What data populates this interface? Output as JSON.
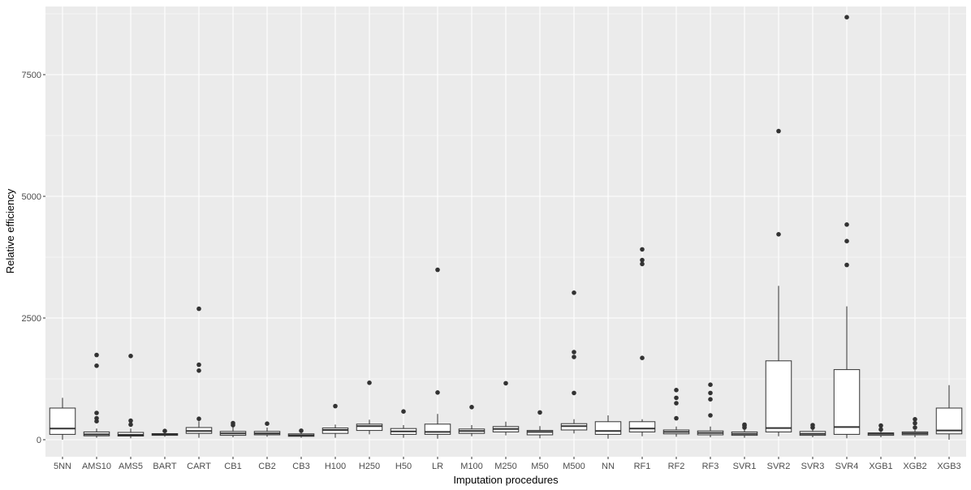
{
  "chart_data": {
    "type": "box",
    "title": "",
    "xlabel": "Imputation procedures",
    "ylabel": "Relative efficiency",
    "ylim": [
      -350,
      8900
    ],
    "yticks": [
      0,
      2500,
      5000,
      7500
    ],
    "ytick_labels": [
      "0",
      "2500",
      "5000",
      "7500"
    ],
    "grid": true,
    "legend": "none",
    "colors": {
      "panel": "#ebebeb",
      "grid": "#ffffff",
      "box_fill": "#ffffff",
      "box_line": "#333333",
      "outlier": "#333333"
    },
    "categories": [
      "5NN",
      "AMS10",
      "AMS5",
      "BART",
      "CART",
      "CB1",
      "CB2",
      "CB3",
      "H100",
      "H250",
      "H50",
      "LR",
      "M100",
      "M250",
      "M50",
      "M500",
      "NN",
      "RF1",
      "RF2",
      "RF3",
      "SVR1",
      "SVR2",
      "SVR3",
      "SVR4",
      "XGB1",
      "XGB2",
      "XGB3"
    ],
    "boxes": [
      {
        "category": "5NN",
        "lower": 0,
        "q1": 110,
        "median": 230,
        "q3": 650,
        "upper": 860,
        "outliers": []
      },
      {
        "category": "AMS10",
        "lower": 40,
        "q1": 80,
        "median": 110,
        "q3": 160,
        "upper": 230,
        "outliers": [
          380,
          440,
          550,
          1520,
          1740
        ]
      },
      {
        "category": "AMS5",
        "lower": 30,
        "q1": 75,
        "median": 100,
        "q3": 150,
        "upper": 230,
        "outliers": [
          310,
          390,
          1720
        ]
      },
      {
        "category": "BART",
        "lower": 60,
        "q1": 90,
        "median": 105,
        "q3": 125,
        "upper": 150,
        "outliers": [
          180
        ]
      },
      {
        "category": "CART",
        "lower": 40,
        "q1": 130,
        "median": 180,
        "q3": 250,
        "upper": 380,
        "outliers": [
          430,
          1420,
          1540,
          2690
        ]
      },
      {
        "category": "CB1",
        "lower": 50,
        "q1": 90,
        "median": 130,
        "q3": 170,
        "upper": 260,
        "outliers": [
          300,
          340
        ]
      },
      {
        "category": "CB2",
        "lower": 60,
        "q1": 100,
        "median": 130,
        "q3": 170,
        "upper": 250,
        "outliers": [
          330
        ]
      },
      {
        "category": "CB3",
        "lower": 40,
        "q1": 70,
        "median": 90,
        "q3": 120,
        "upper": 160,
        "outliers": [
          185
        ]
      },
      {
        "category": "H100",
        "lower": 40,
        "q1": 130,
        "median": 200,
        "q3": 240,
        "upper": 310,
        "outliers": [
          690
        ]
      },
      {
        "category": "H250",
        "lower": 110,
        "q1": 190,
        "median": 280,
        "q3": 320,
        "upper": 410,
        "outliers": [
          1170
        ]
      },
      {
        "category": "H50",
        "lower": 40,
        "q1": 110,
        "median": 170,
        "q3": 230,
        "upper": 300,
        "outliers": [
          580
        ]
      },
      {
        "category": "LR",
        "lower": 20,
        "q1": 110,
        "median": 160,
        "q3": 320,
        "upper": 530,
        "outliers": [
          970,
          3490
        ]
      },
      {
        "category": "M100",
        "lower": 70,
        "q1": 130,
        "median": 180,
        "q3": 220,
        "upper": 300,
        "outliers": [
          670
        ]
      },
      {
        "category": "M250",
        "lower": 90,
        "q1": 160,
        "median": 220,
        "q3": 270,
        "upper": 370,
        "outliers": [
          1160
        ]
      },
      {
        "category": "M50",
        "lower": 30,
        "q1": 100,
        "median": 160,
        "q3": 190,
        "upper": 280,
        "outliers": [
          560
        ]
      },
      {
        "category": "M500",
        "lower": 130,
        "q1": 200,
        "median": 280,
        "q3": 330,
        "upper": 420,
        "outliers": [
          960,
          1700,
          1800,
          3020
        ]
      },
      {
        "category": "NN",
        "lower": 20,
        "q1": 110,
        "median": 180,
        "q3": 370,
        "upper": 500,
        "outliers": []
      },
      {
        "category": "RF1",
        "lower": 70,
        "q1": 160,
        "median": 230,
        "q3": 370,
        "upper": 420,
        "outliers": [
          1680,
          3610,
          3690,
          3910
        ]
      },
      {
        "category": "RF2",
        "lower": 60,
        "q1": 120,
        "median": 160,
        "q3": 200,
        "upper": 270,
        "outliers": [
          440,
          750,
          860,
          1020
        ]
      },
      {
        "category": "RF3",
        "lower": 50,
        "q1": 100,
        "median": 140,
        "q3": 180,
        "upper": 270,
        "outliers": [
          500,
          830,
          960,
          1130
        ]
      },
      {
        "category": "SVR1",
        "lower": 40,
        "q1": 90,
        "median": 120,
        "q3": 160,
        "upper": 210,
        "outliers": [
          250,
          290,
          310
        ]
      },
      {
        "category": "SVR2",
        "lower": 70,
        "q1": 160,
        "median": 240,
        "q3": 1620,
        "upper": 3160,
        "outliers": [
          4220,
          6340
        ]
      },
      {
        "category": "SVR3",
        "lower": 50,
        "q1": 90,
        "median": 120,
        "q3": 170,
        "upper": 220,
        "outliers": [
          250,
          300
        ]
      },
      {
        "category": "SVR4",
        "lower": 30,
        "q1": 110,
        "median": 260,
        "q3": 1440,
        "upper": 2740,
        "outliers": [
          3590,
          4080,
          4420,
          8680
        ]
      },
      {
        "category": "XGB1",
        "lower": 50,
        "q1": 90,
        "median": 120,
        "q3": 140,
        "upper": 170,
        "outliers": [
          210,
          290
        ]
      },
      {
        "category": "XGB2",
        "lower": 50,
        "q1": 100,
        "median": 130,
        "q3": 160,
        "upper": 200,
        "outliers": [
          250,
          340,
          420
        ]
      },
      {
        "category": "XGB3",
        "lower": 0,
        "q1": 120,
        "median": 190,
        "q3": 650,
        "upper": 1120,
        "outliers": []
      }
    ]
  }
}
